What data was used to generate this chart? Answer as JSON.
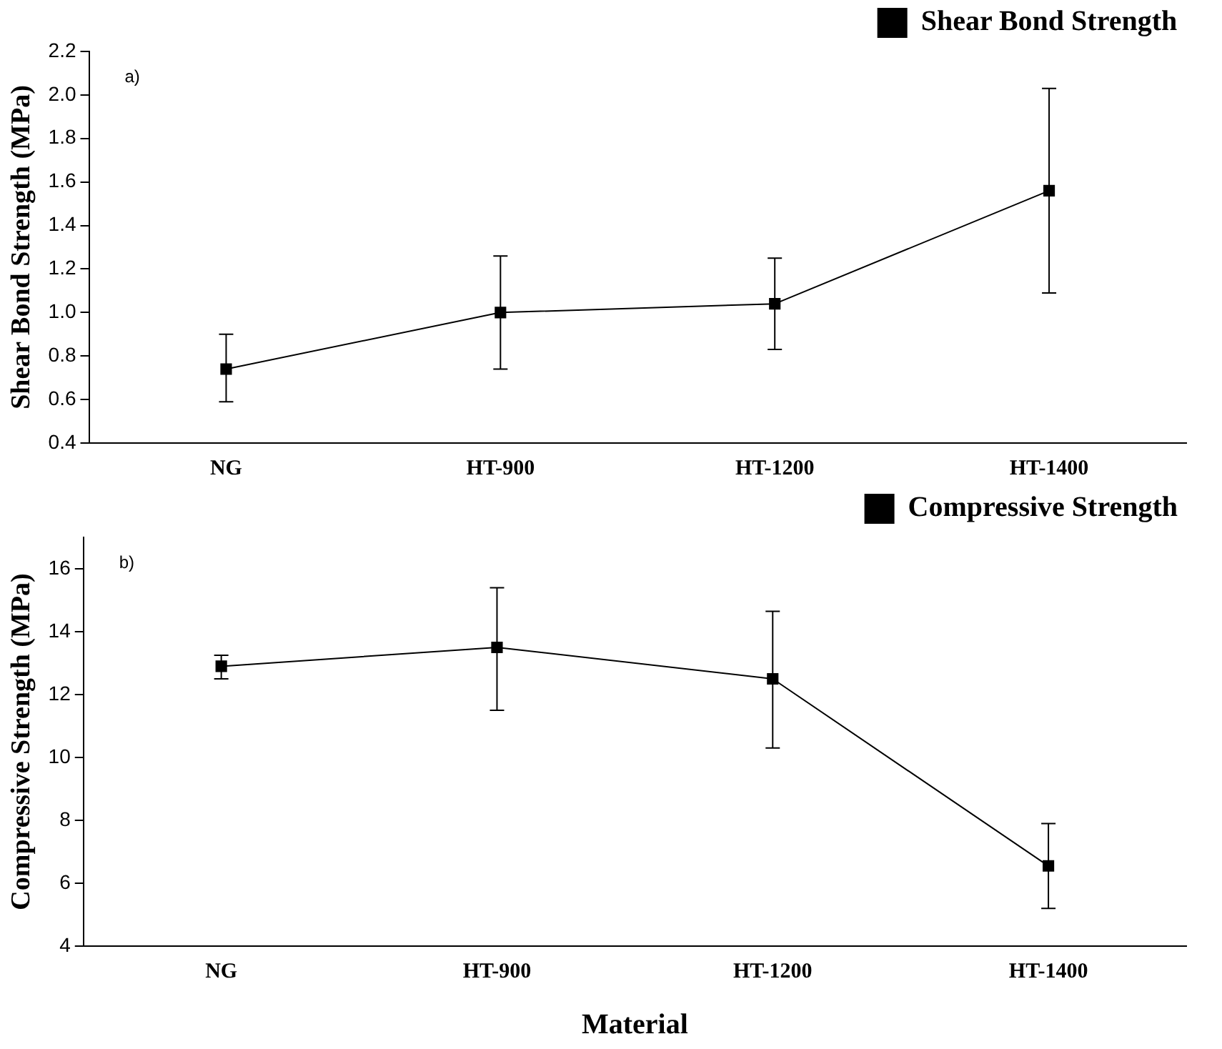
{
  "chart_data": [
    {
      "type": "line",
      "ylabel": "Shear Bond Strength (MPa)",
      "categories": [
        "NG",
        "HT-900",
        "HT-1200",
        "HT-1400"
      ],
      "series": [
        {
          "name": "Shear Bond Strength",
          "color": "#000000",
          "values": [
            0.74,
            1.0,
            1.04,
            1.56
          ],
          "errors": [
            [
              0.59,
              0.9
            ],
            [
              0.74,
              1.26
            ],
            [
              0.83,
              1.25
            ],
            [
              1.09,
              2.03
            ]
          ]
        }
      ],
      "ylim": [
        0.4,
        2.2
      ],
      "yticks": [
        0.4,
        0.6,
        0.8,
        {
          "value": 1,
          "label": "1.0"
        },
        1.2,
        1.4,
        1.6,
        1.8,
        {
          "value": 2,
          "label": "2.0"
        },
        2.2
      ],
      "annotations": [
        "a)"
      ],
      "legend": "top right",
      "marker": "square",
      "line_style": "solid"
    },
    {
      "type": "line",
      "ylabel": "Compressive Strength (MPa)",
      "xlabel": "Material",
      "categories": [
        "NG",
        "HT-900",
        "HT-1200",
        "HT-1400"
      ],
      "series": [
        {
          "name": "Compressive Strength",
          "color": "#000000",
          "values": [
            12.9,
            13.5,
            12.5,
            6.55
          ],
          "errors": [
            [
              12.5,
              13.25
            ],
            [
              11.5,
              15.4
            ],
            [
              10.3,
              14.65
            ],
            [
              5.2,
              7.9
            ]
          ]
        }
      ],
      "ylim": [
        4,
        17
      ],
      "yticks": [
        4,
        6,
        8,
        10,
        12,
        14,
        16
      ],
      "annotations": [
        "b)"
      ],
      "legend": "top right",
      "marker": "square",
      "line_style": "solid"
    }
  ]
}
